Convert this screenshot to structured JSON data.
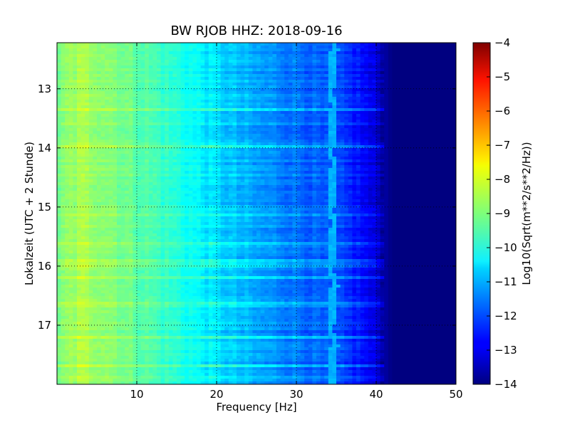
{
  "chart_data": {
    "type": "heatmap",
    "title": "BW RJOB HHZ: 2018-09-16",
    "xlabel": "Frequency [Hz]",
    "ylabel": "Lokalzeit (UTC + 2 Stunde)",
    "xlim": [
      0,
      50
    ],
    "ylim": [
      12.22,
      18.0
    ],
    "y_inverted": true,
    "x_ticks": [
      10,
      20,
      30,
      40,
      50
    ],
    "x_tick_labels": [
      "10",
      "20",
      "30",
      "40",
      "50"
    ],
    "y_ticks": [
      13,
      14,
      15,
      16,
      17
    ],
    "y_tick_labels": [
      "13",
      "14",
      "15",
      "16",
      "17"
    ],
    "grid": true,
    "colormap": "jet",
    "colorbar": {
      "label": "Log10(Sqrt(m**2/s**2/Hz))",
      "range": [
        -14,
        -4
      ],
      "ticks": [
        -4,
        -5,
        -6,
        -7,
        -8,
        -9,
        -10,
        -11,
        -12,
        -13,
        -14
      ],
      "tick_labels": [
        "−4",
        "−5",
        "−6",
        "−7",
        "−8",
        "−9",
        "−10",
        "−11",
        "−12",
        "−13",
        "−14"
      ]
    },
    "spectral_profile": {
      "description_units": "frequency Hz -> approx Log10 amplitude",
      "freq": [
        0,
        1,
        3,
        6,
        10,
        15,
        20,
        25,
        30,
        35,
        38,
        40,
        42,
        50
      ],
      "level": [
        -9.4,
        -8.9,
        -8.6,
        -8.8,
        -9.3,
        -9.9,
        -10.6,
        -11.2,
        -11.6,
        -12.1,
        -12.6,
        -13.2,
        -14.0,
        -14.0
      ]
    },
    "narrow_band_line": {
      "frequency_hz": 34.5,
      "level": -11.0
    }
  }
}
